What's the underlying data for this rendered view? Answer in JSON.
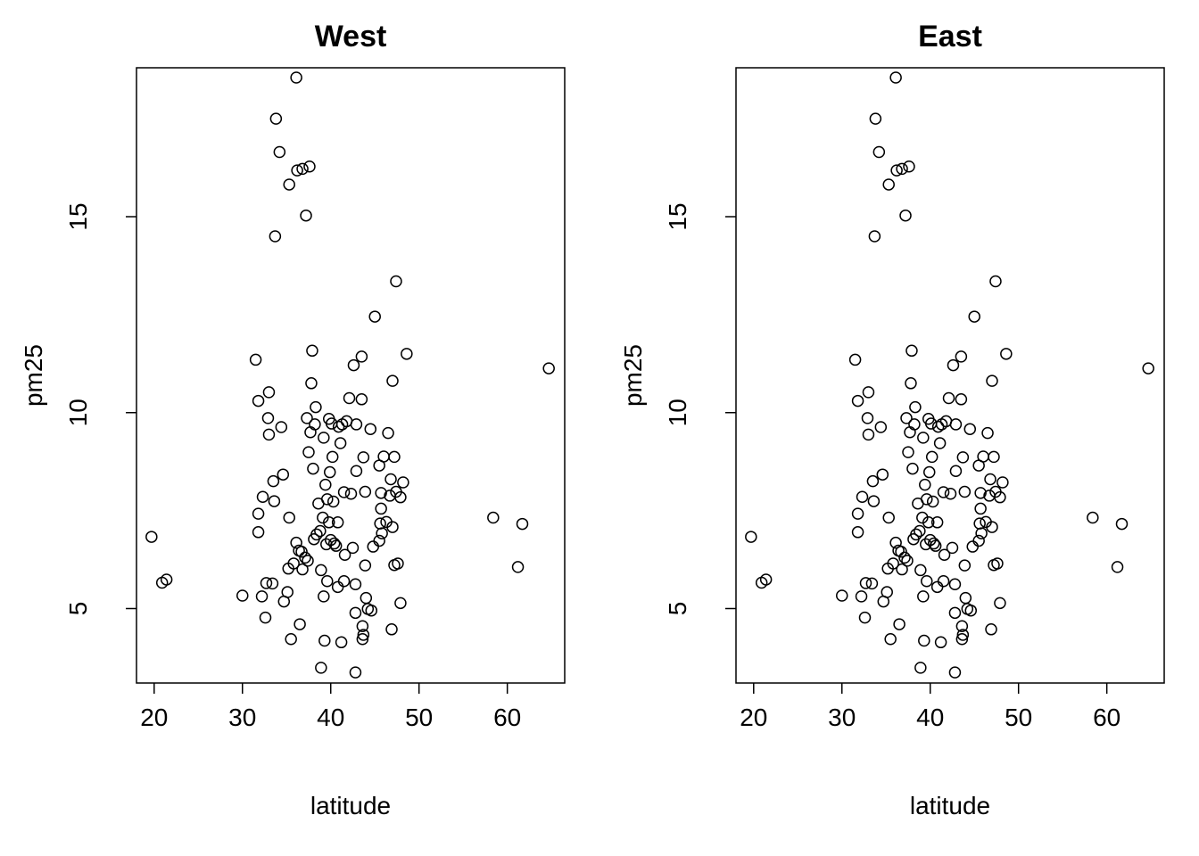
{
  "chart_data": [
    {
      "type": "scatter",
      "title": "West",
      "xlabel": "latitude",
      "ylabel": "pm25",
      "xlim": [
        18,
        66.5
      ],
      "ylim": [
        3.1,
        18.8
      ],
      "xticks": [
        "20",
        "30",
        "40",
        "50",
        "60"
      ],
      "yticks": [
        "5",
        "10",
        "15"
      ],
      "grid": false,
      "points": [
        [
          19.7,
          6.83
        ],
        [
          20.9,
          5.66
        ],
        [
          21.4,
          5.74
        ],
        [
          30.0,
          5.33
        ],
        [
          31.5,
          11.35
        ],
        [
          31.8,
          10.3
        ],
        [
          31.8,
          7.42
        ],
        [
          31.8,
          6.95
        ],
        [
          32.2,
          5.31
        ],
        [
          32.3,
          7.85
        ],
        [
          32.6,
          4.77
        ],
        [
          32.7,
          5.65
        ],
        [
          32.9,
          9.86
        ],
        [
          33.0,
          9.44
        ],
        [
          33.0,
          10.52
        ],
        [
          33.4,
          5.64
        ],
        [
          33.5,
          8.25
        ],
        [
          33.6,
          7.74
        ],
        [
          33.7,
          14.5
        ],
        [
          33.8,
          17.5
        ],
        [
          34.2,
          16.65
        ],
        [
          34.4,
          9.63
        ],
        [
          34.6,
          8.42
        ],
        [
          34.7,
          5.18
        ],
        [
          35.1,
          5.42
        ],
        [
          35.2,
          6.02
        ],
        [
          35.3,
          7.32
        ],
        [
          35.3,
          15.82
        ],
        [
          35.5,
          4.22
        ],
        [
          35.8,
          6.15
        ],
        [
          36.1,
          18.55
        ],
        [
          36.1,
          6.68
        ],
        [
          36.2,
          16.18
        ],
        [
          36.4,
          6.48
        ],
        [
          36.5,
          4.6
        ],
        [
          36.7,
          6.45
        ],
        [
          36.8,
          16.22
        ],
        [
          36.8,
          6.0
        ],
        [
          37.1,
          6.3
        ],
        [
          37.2,
          15.03
        ],
        [
          37.3,
          9.86
        ],
        [
          37.4,
          6.22
        ],
        [
          37.5,
          8.99
        ],
        [
          37.6,
          16.28
        ],
        [
          37.7,
          9.5
        ],
        [
          37.8,
          10.75
        ],
        [
          37.9,
          11.58
        ],
        [
          38.0,
          8.57
        ],
        [
          38.1,
          6.77
        ],
        [
          38.2,
          9.7
        ],
        [
          38.3,
          10.14
        ],
        [
          38.4,
          6.89
        ],
        [
          38.6,
          7.68
        ],
        [
          38.8,
          6.98
        ],
        [
          38.9,
          5.98
        ],
        [
          38.9,
          3.49
        ],
        [
          39.1,
          7.32
        ],
        [
          39.2,
          9.36
        ],
        [
          39.2,
          5.31
        ],
        [
          39.3,
          4.18
        ],
        [
          39.4,
          8.16
        ],
        [
          39.5,
          6.64
        ],
        [
          39.6,
          7.79
        ],
        [
          39.6,
          5.7
        ],
        [
          39.8,
          9.84
        ],
        [
          39.8,
          7.2
        ],
        [
          39.9,
          8.48
        ],
        [
          40.0,
          6.75
        ],
        [
          40.1,
          9.72
        ],
        [
          40.2,
          8.87
        ],
        [
          40.3,
          7.73
        ],
        [
          40.4,
          6.66
        ],
        [
          40.6,
          6.6
        ],
        [
          40.8,
          7.2
        ],
        [
          40.8,
          5.55
        ],
        [
          40.9,
          9.64
        ],
        [
          41.1,
          9.22
        ],
        [
          41.2,
          4.14
        ],
        [
          41.3,
          9.7
        ],
        [
          41.5,
          5.7
        ],
        [
          41.5,
          7.97
        ],
        [
          41.6,
          6.37
        ],
        [
          41.8,
          9.78
        ],
        [
          42.1,
          10.37
        ],
        [
          42.3,
          7.93
        ],
        [
          42.5,
          6.55
        ],
        [
          42.6,
          11.21
        ],
        [
          42.8,
          4.89
        ],
        [
          42.8,
          3.37
        ],
        [
          42.8,
          5.62
        ],
        [
          42.9,
          9.7
        ],
        [
          42.9,
          8.51
        ],
        [
          43.5,
          10.34
        ],
        [
          43.5,
          11.43
        ],
        [
          43.6,
          4.22
        ],
        [
          43.6,
          4.55
        ],
        [
          43.7,
          8.86
        ],
        [
          43.7,
          4.33
        ],
        [
          43.9,
          7.98
        ],
        [
          43.9,
          6.1
        ],
        [
          44.0,
          5.27
        ],
        [
          44.2,
          4.99
        ],
        [
          44.5,
          9.58
        ],
        [
          44.6,
          4.95
        ],
        [
          44.8,
          6.58
        ],
        [
          45.0,
          12.45
        ],
        [
          45.5,
          6.73
        ],
        [
          45.5,
          8.65
        ],
        [
          45.6,
          7.17
        ],
        [
          45.7,
          7.55
        ],
        [
          45.7,
          7.95
        ],
        [
          45.8,
          6.92
        ],
        [
          46.0,
          8.88
        ],
        [
          46.3,
          7.21
        ],
        [
          46.5,
          9.48
        ],
        [
          46.7,
          7.88
        ],
        [
          46.8,
          8.3
        ],
        [
          46.9,
          4.47
        ],
        [
          47.0,
          7.08
        ],
        [
          47.0,
          10.81
        ],
        [
          47.2,
          8.87
        ],
        [
          47.2,
          6.11
        ],
        [
          47.4,
          13.35
        ],
        [
          47.4,
          7.98
        ],
        [
          47.6,
          6.15
        ],
        [
          47.9,
          5.14
        ],
        [
          47.9,
          7.84
        ],
        [
          48.2,
          8.22
        ],
        [
          48.6,
          11.5
        ],
        [
          58.4,
          7.32
        ],
        [
          61.2,
          6.06
        ],
        [
          61.7,
          7.16
        ],
        [
          64.7,
          11.13
        ]
      ]
    },
    {
      "type": "scatter",
      "title": "East",
      "xlabel": "latitude",
      "ylabel": "pm25",
      "xlim": [
        18,
        66.5
      ],
      "ylim": [
        3.1,
        18.8
      ],
      "xticks": [
        "20",
        "30",
        "40",
        "50",
        "60"
      ],
      "yticks": [
        "5",
        "10",
        "15"
      ],
      "grid": false,
      "points": [
        [
          19.7,
          6.83
        ],
        [
          20.9,
          5.66
        ],
        [
          21.4,
          5.74
        ],
        [
          30.0,
          5.33
        ],
        [
          31.5,
          11.35
        ],
        [
          31.8,
          10.3
        ],
        [
          31.8,
          7.42
        ],
        [
          31.8,
          6.95
        ],
        [
          32.2,
          5.31
        ],
        [
          32.3,
          7.85
        ],
        [
          32.6,
          4.77
        ],
        [
          32.7,
          5.65
        ],
        [
          32.9,
          9.86
        ],
        [
          33.0,
          9.44
        ],
        [
          33.0,
          10.52
        ],
        [
          33.4,
          5.64
        ],
        [
          33.5,
          8.25
        ],
        [
          33.6,
          7.74
        ],
        [
          33.7,
          14.5
        ],
        [
          33.8,
          17.5
        ],
        [
          34.2,
          16.65
        ],
        [
          34.4,
          9.63
        ],
        [
          34.6,
          8.42
        ],
        [
          34.7,
          5.18
        ],
        [
          35.1,
          5.42
        ],
        [
          35.2,
          6.02
        ],
        [
          35.3,
          7.32
        ],
        [
          35.3,
          15.82
        ],
        [
          35.5,
          4.22
        ],
        [
          35.8,
          6.15
        ],
        [
          36.1,
          18.55
        ],
        [
          36.1,
          6.68
        ],
        [
          36.2,
          16.18
        ],
        [
          36.4,
          6.48
        ],
        [
          36.5,
          4.6
        ],
        [
          36.7,
          6.45
        ],
        [
          36.8,
          16.22
        ],
        [
          36.8,
          6.0
        ],
        [
          37.1,
          6.3
        ],
        [
          37.2,
          15.03
        ],
        [
          37.3,
          9.86
        ],
        [
          37.4,
          6.22
        ],
        [
          37.5,
          8.99
        ],
        [
          37.6,
          16.28
        ],
        [
          37.7,
          9.5
        ],
        [
          37.8,
          10.75
        ],
        [
          37.9,
          11.58
        ],
        [
          38.0,
          8.57
        ],
        [
          38.1,
          6.77
        ],
        [
          38.2,
          9.7
        ],
        [
          38.3,
          10.14
        ],
        [
          38.4,
          6.89
        ],
        [
          38.6,
          7.68
        ],
        [
          38.8,
          6.98
        ],
        [
          38.9,
          5.98
        ],
        [
          38.9,
          3.49
        ],
        [
          39.1,
          7.32
        ],
        [
          39.2,
          9.36
        ],
        [
          39.2,
          5.31
        ],
        [
          39.3,
          4.18
        ],
        [
          39.4,
          8.16
        ],
        [
          39.5,
          6.64
        ],
        [
          39.6,
          7.79
        ],
        [
          39.6,
          5.7
        ],
        [
          39.8,
          9.84
        ],
        [
          39.8,
          7.2
        ],
        [
          39.9,
          8.48
        ],
        [
          40.0,
          6.75
        ],
        [
          40.1,
          9.72
        ],
        [
          40.2,
          8.87
        ],
        [
          40.3,
          7.73
        ],
        [
          40.4,
          6.66
        ],
        [
          40.6,
          6.6
        ],
        [
          40.8,
          7.2
        ],
        [
          40.8,
          5.55
        ],
        [
          40.9,
          9.64
        ],
        [
          41.1,
          9.22
        ],
        [
          41.2,
          4.14
        ],
        [
          41.3,
          9.7
        ],
        [
          41.5,
          5.7
        ],
        [
          41.5,
          7.97
        ],
        [
          41.6,
          6.37
        ],
        [
          41.8,
          9.78
        ],
        [
          42.1,
          10.37
        ],
        [
          42.3,
          7.93
        ],
        [
          42.5,
          6.55
        ],
        [
          42.6,
          11.21
        ],
        [
          42.8,
          4.89
        ],
        [
          42.8,
          3.37
        ],
        [
          42.8,
          5.62
        ],
        [
          42.9,
          9.7
        ],
        [
          42.9,
          8.51
        ],
        [
          43.5,
          10.34
        ],
        [
          43.5,
          11.43
        ],
        [
          43.6,
          4.22
        ],
        [
          43.6,
          4.55
        ],
        [
          43.7,
          8.86
        ],
        [
          43.7,
          4.33
        ],
        [
          43.9,
          7.98
        ],
        [
          43.9,
          6.1
        ],
        [
          44.0,
          5.27
        ],
        [
          44.2,
          4.99
        ],
        [
          44.5,
          9.58
        ],
        [
          44.6,
          4.95
        ],
        [
          44.8,
          6.58
        ],
        [
          45.0,
          12.45
        ],
        [
          45.5,
          6.73
        ],
        [
          45.5,
          8.65
        ],
        [
          45.6,
          7.17
        ],
        [
          45.7,
          7.55
        ],
        [
          45.7,
          7.95
        ],
        [
          45.8,
          6.92
        ],
        [
          46.0,
          8.88
        ],
        [
          46.3,
          7.21
        ],
        [
          46.5,
          9.48
        ],
        [
          46.7,
          7.88
        ],
        [
          46.8,
          8.3
        ],
        [
          46.9,
          4.47
        ],
        [
          47.0,
          7.08
        ],
        [
          47.0,
          10.81
        ],
        [
          47.2,
          8.87
        ],
        [
          47.2,
          6.11
        ],
        [
          47.4,
          13.35
        ],
        [
          47.4,
          7.98
        ],
        [
          47.6,
          6.15
        ],
        [
          47.9,
          5.14
        ],
        [
          47.9,
          7.84
        ],
        [
          48.2,
          8.22
        ],
        [
          48.6,
          11.5
        ],
        [
          58.4,
          7.32
        ],
        [
          61.2,
          6.06
        ],
        [
          61.7,
          7.16
        ],
        [
          64.7,
          11.13
        ]
      ]
    }
  ]
}
